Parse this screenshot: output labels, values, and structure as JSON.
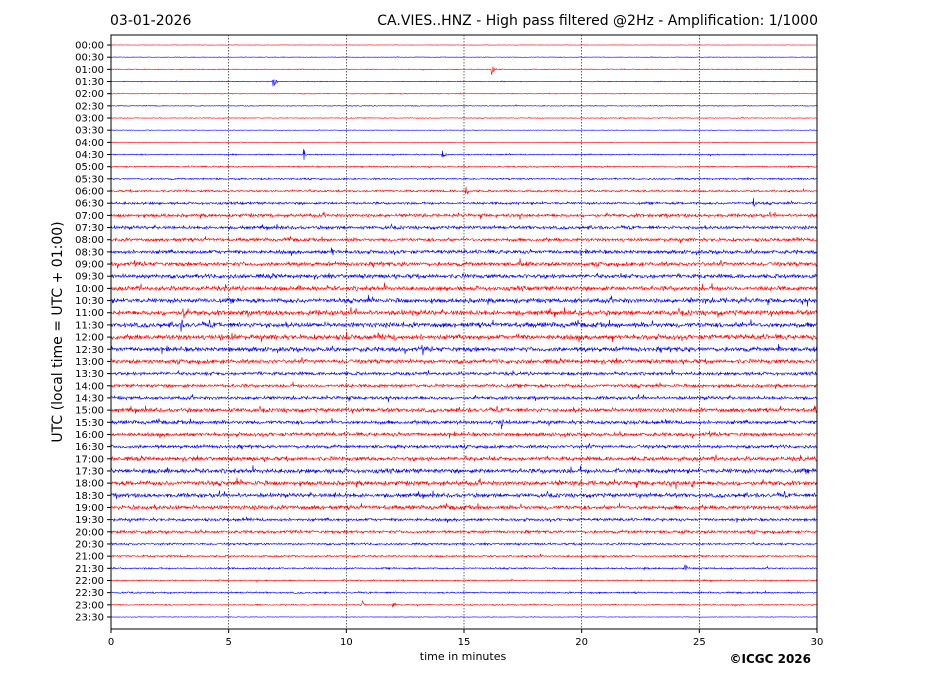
{
  "chart_data": {
    "type": "line",
    "date": "03-01-2026",
    "title": "CA.VIES..HNZ - High pass filtered @2Hz - Amplification: 1/1000",
    "xlabel": "time in minutes",
    "ylabel": "UTC (local time = UTC + 01:00)",
    "xlim": [
      0,
      30
    ],
    "x_ticks": [
      0,
      5,
      10,
      15,
      20,
      25,
      30
    ],
    "x_grid": true,
    "y_ticks": [
      "00:00",
      "00:30",
      "01:00",
      "01:30",
      "02:00",
      "02:30",
      "03:00",
      "03:30",
      "04:00",
      "04:30",
      "05:00",
      "05:30",
      "06:00",
      "06:30",
      "07:00",
      "07:30",
      "08:00",
      "08:30",
      "09:00",
      "09:30",
      "10:00",
      "10:30",
      "11:00",
      "11:30",
      "12:00",
      "12:30",
      "13:00",
      "13:30",
      "14:00",
      "14:30",
      "15:00",
      "15:30",
      "16:00",
      "16:30",
      "17:00",
      "17:30",
      "18:00",
      "18:30",
      "19:00",
      "19:30",
      "20:00",
      "20:30",
      "21:00",
      "21:30",
      "22:00",
      "22:30",
      "23:00",
      "23:30"
    ],
    "series_colors": [
      "#ff0000",
      "#0000ff"
    ],
    "noise_level": [
      0.2,
      0.3,
      0.4,
      0.4,
      0.4,
      0.4,
      0.4,
      0.3,
      0.3,
      0.6,
      0.7,
      0.8,
      1.0,
      1.2,
      1.6,
      1.6,
      1.6,
      1.8,
      2.0,
      2.0,
      2.2,
      2.2,
      2.4,
      2.4,
      2.4,
      2.2,
      2.0,
      1.6,
      1.6,
      1.6,
      2.0,
      1.8,
      1.8,
      1.6,
      2.0,
      2.2,
      2.2,
      2.0,
      2.0,
      1.4,
      1.4,
      1.0,
      0.9,
      0.8,
      0.7,
      0.8,
      0.6,
      0.3
    ],
    "events": [
      {
        "row": 2,
        "minute": 16.2,
        "amp": 6
      },
      {
        "row": 3,
        "minute": 6.9,
        "amp": 8
      },
      {
        "row": 9,
        "minute": 8.2,
        "amp": 7
      },
      {
        "row": 9,
        "minute": 14.1,
        "amp": 5
      },
      {
        "row": 12,
        "minute": 15.1,
        "amp": 6
      },
      {
        "row": 13,
        "minute": 27.3,
        "amp": 6
      },
      {
        "row": 17,
        "minute": 9.4,
        "amp": 6
      },
      {
        "row": 18,
        "minute": 17.4,
        "amp": 6
      },
      {
        "row": 19,
        "minute": 1.6,
        "amp": 6
      },
      {
        "row": 22,
        "minute": 3.1,
        "amp": 6
      },
      {
        "row": 23,
        "minute": 3.0,
        "amp": 7
      },
      {
        "row": 24,
        "minute": 10.0,
        "amp": 6
      },
      {
        "row": 25,
        "minute": 28.4,
        "amp": 6
      },
      {
        "row": 30,
        "minute": 29.9,
        "amp": 6
      },
      {
        "row": 31,
        "minute": 16.6,
        "amp": 7
      },
      {
        "row": 35,
        "minute": 21.5,
        "amp": 7
      },
      {
        "row": 36,
        "minute": 24.7,
        "amp": 6
      },
      {
        "row": 37,
        "minute": 9.5,
        "amp": 7
      },
      {
        "row": 38,
        "minute": 0.9,
        "amp": 6
      },
      {
        "row": 43,
        "minute": 24.4,
        "amp": 5
      },
      {
        "row": 46,
        "minute": 10.7,
        "amp": 5
      },
      {
        "row": 46,
        "minute": 12.0,
        "amp": 4
      }
    ]
  },
  "footer": {
    "copyright": "©ICGC 2026"
  }
}
